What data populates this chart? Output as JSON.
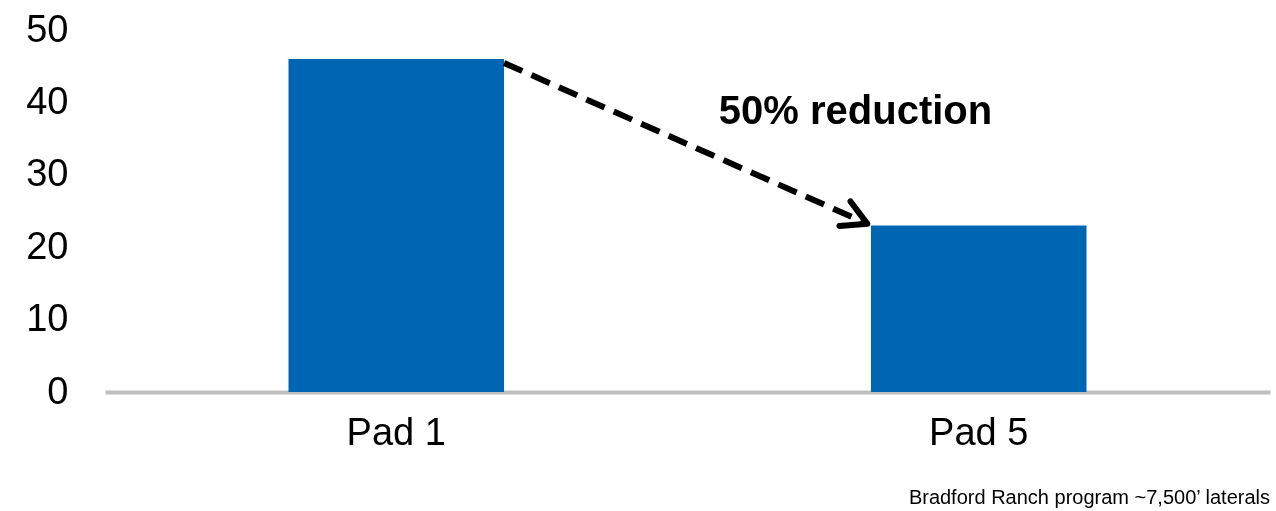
{
  "chart_data": {
    "type": "bar",
    "categories": [
      "Pad 1",
      "Pad 5"
    ],
    "values": [
      46,
      23
    ],
    "color": "#0066b3",
    "ylim": [
      0,
      50
    ],
    "yticks": [
      0,
      10,
      20,
      30,
      40,
      50
    ],
    "annotations": [
      "50% reduction",
      "Bradford Ranch program ~7,500’ laterals"
    ]
  }
}
